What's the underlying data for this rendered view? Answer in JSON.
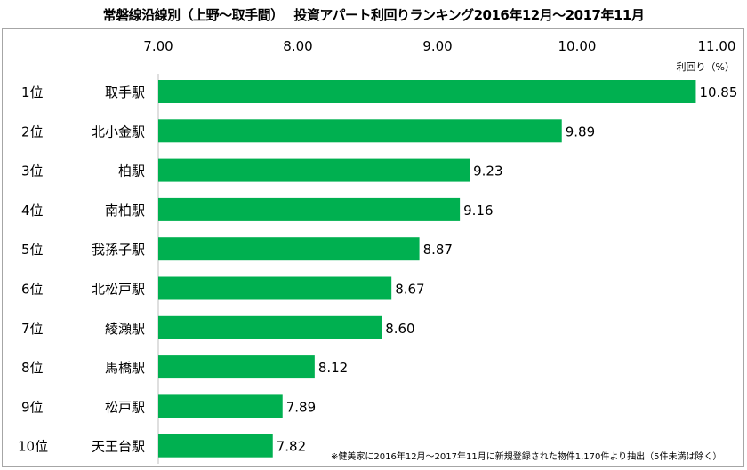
{
  "chart_data": {
    "type": "bar",
    "orientation": "horizontal",
    "title": "常磐線沿線別（上野～取手間）　 投資アパート利回りランキング2016年12月～2017年11月",
    "xlabel": "利回り（%）",
    "xlim": [
      7.0,
      11.0
    ],
    "xticks": [
      "7.00",
      "8.00",
      "9.00",
      "10.00",
      "11.00"
    ],
    "tick_position": "top",
    "grid": false,
    "ranks": [
      "1位",
      "2位",
      "3位",
      "4位",
      "5位",
      "6位",
      "7位",
      "8位",
      "9位",
      "10位"
    ],
    "categories": [
      "取手駅",
      "北小金駅",
      "柏駅",
      "南柏駅",
      "我孫子駅",
      "北松戸駅",
      "綾瀬駅",
      "馬橋駅",
      "松戸駅",
      "天王台駅"
    ],
    "values": [
      10.85,
      9.89,
      9.23,
      9.16,
      8.87,
      8.67,
      8.6,
      8.12,
      7.89,
      7.82
    ],
    "bar_color": "#00b050",
    "footnote": "※健美家に2016年12月～2017年11月に新規登録された物件1,170件より抽出（5件未満は除く）"
  }
}
